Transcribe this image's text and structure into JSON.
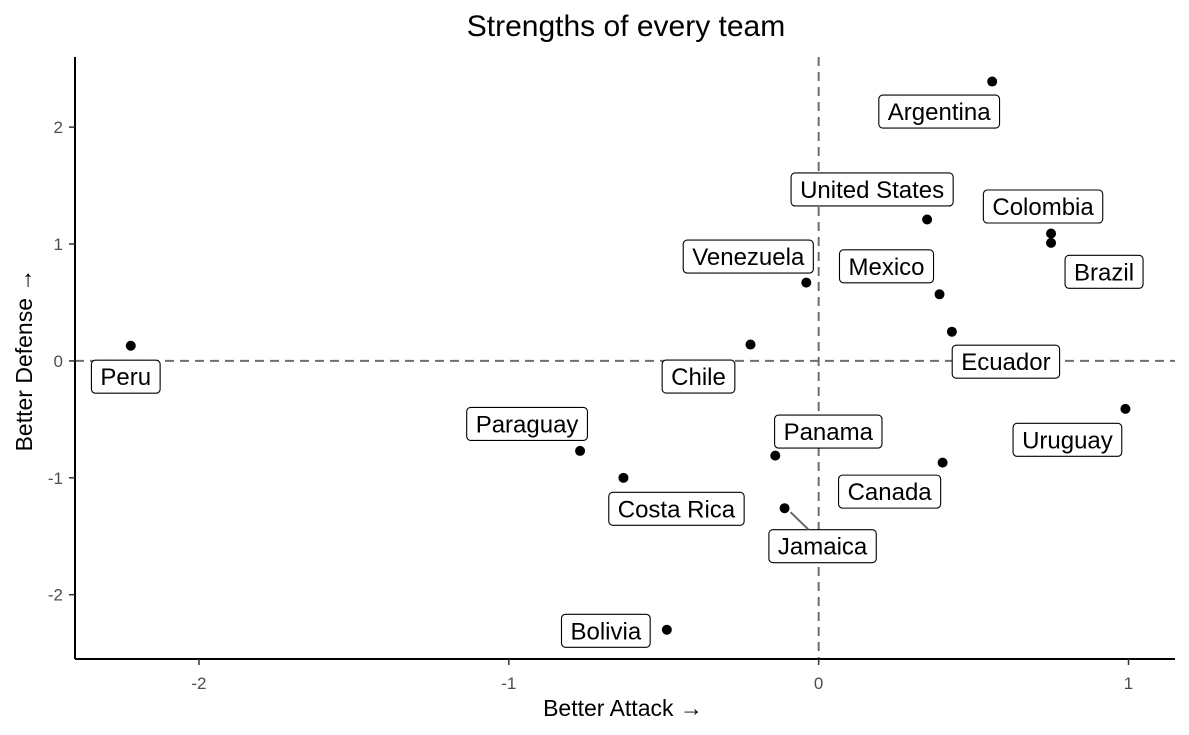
{
  "chart_data": {
    "type": "scatter",
    "title": "Strengths of every team",
    "xlabel": "Better Attack →",
    "ylabel": "Better Defense →",
    "xlim": [
      -2.4,
      1.15
    ],
    "ylim": [
      -2.55,
      2.6
    ],
    "xticks": [
      -2,
      -1,
      0,
      1
    ],
    "yticks": [
      -2,
      -1,
      0,
      1,
      2
    ],
    "reference_lines": {
      "x": 0,
      "y": 0,
      "style": "dashed"
    },
    "grid": false,
    "points": [
      {
        "label": "Argentina",
        "x": 0.56,
        "y": 2.39
      },
      {
        "label": "United States",
        "x": 0.35,
        "y": 1.21
      },
      {
        "label": "Colombia",
        "x": 0.75,
        "y": 1.09
      },
      {
        "label": "Brazil",
        "x": 0.75,
        "y": 1.01
      },
      {
        "label": "Venezuela",
        "x": -0.04,
        "y": 0.67
      },
      {
        "label": "Mexico",
        "x": 0.39,
        "y": 0.57
      },
      {
        "label": "Ecuador",
        "x": 0.43,
        "y": 0.25
      },
      {
        "label": "Chile",
        "x": -0.22,
        "y": 0.14
      },
      {
        "label": "Peru",
        "x": -2.22,
        "y": 0.13
      },
      {
        "label": "Uruguay",
        "x": 0.99,
        "y": -0.41
      },
      {
        "label": "Paraguay",
        "x": -0.77,
        "y": -0.77
      },
      {
        "label": "Panama",
        "x": -0.14,
        "y": -0.81
      },
      {
        "label": "Canada",
        "x": 0.4,
        "y": -0.87
      },
      {
        "label": "Costa Rica",
        "x": -0.63,
        "y": -1.0
      },
      {
        "label": "Jamaica",
        "x": -0.11,
        "y": -1.26
      },
      {
        "label": "Bolivia",
        "x": -0.49,
        "y": -2.3
      }
    ]
  }
}
